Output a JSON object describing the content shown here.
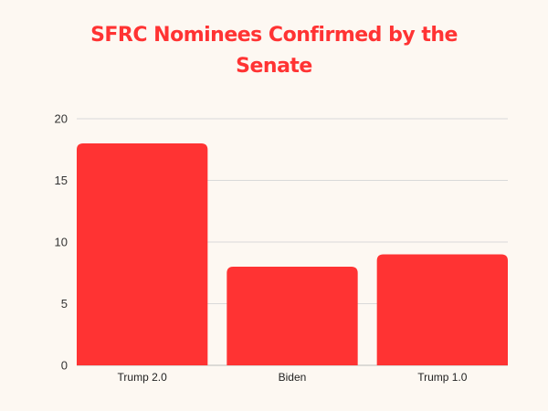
{
  "chart_data": {
    "type": "bar",
    "title": "SFRC Nominees Confirmed by the Senate",
    "categories": [
      "Trump 2.0",
      "Biden",
      "Trump 1.0"
    ],
    "values": [
      18,
      8,
      9
    ],
    "xlabel": "",
    "ylabel": "",
    "ylim": [
      0,
      20
    ],
    "yticks": [
      "0",
      "5",
      "10",
      "15",
      "20"
    ],
    "grid": true,
    "legend": "none",
    "bar_color": "#ff3333",
    "grid_color": "#d9d9d9",
    "axis_color": "#bbbbbb"
  }
}
